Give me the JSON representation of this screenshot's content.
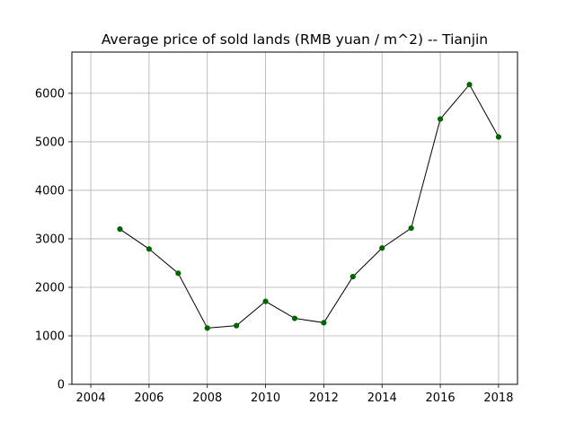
{
  "chart_data": {
    "type": "line",
    "title": "Average price of sold lands (RMB yuan / m^2) -- Tianjin",
    "xlabel": "",
    "ylabel": "",
    "x": [
      2005,
      2006,
      2007,
      2008,
      2009,
      2010,
      2011,
      2012,
      2013,
      2014,
      2015,
      2016,
      2017,
      2018
    ],
    "series": [
      {
        "values": [
          3200,
          2790,
          2290,
          1160,
          1210,
          1710,
          1360,
          1270,
          2220,
          2810,
          3220,
          5470,
          6180,
          5100
        ]
      }
    ],
    "xlim": [
      2003.35,
      2018.65
    ],
    "ylim": [
      0,
      6850
    ],
    "xticks": [
      2004,
      2006,
      2008,
      2010,
      2012,
      2014,
      2016,
      2018
    ],
    "yticks": [
      0,
      1000,
      2000,
      3000,
      4000,
      5000,
      6000
    ],
    "grid": true,
    "line_color": "#000000",
    "marker_color": "#006400"
  }
}
